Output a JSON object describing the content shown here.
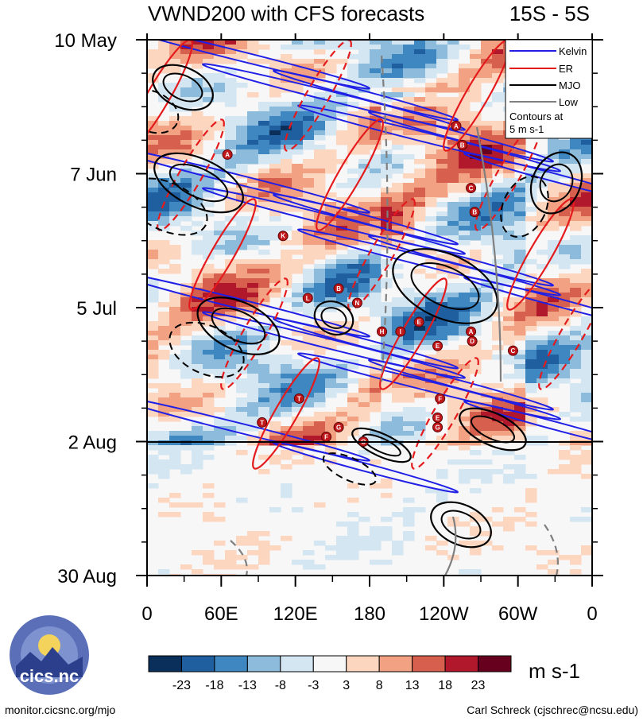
{
  "chart_data": {
    "type": "heatmap",
    "title": "VWND200 with CFS forecasts",
    "region": "15S - 5S",
    "x_tick_labels": [
      "0",
      "60E",
      "120E",
      "180",
      "120W",
      "60W",
      "0"
    ],
    "x_range_deg": [
      0,
      360
    ],
    "y_tick_labels": [
      "10 May",
      "7 Jun",
      "5 Jul",
      "2 Aug",
      "30 Aug"
    ],
    "y_range_days_from_10May": [
      0,
      112
    ],
    "observed_end_label": "2 Aug",
    "colorbar": {
      "ticks": [
        "-23",
        "-18",
        "-13",
        "-8",
        "-3",
        "3",
        "8",
        "13",
        "18",
        "23"
      ],
      "units": "m s-1",
      "colors": [
        "#0a2f5b",
        "#1f5f9f",
        "#3f87c0",
        "#8dbbdc",
        "#d3e6f2",
        "#f7f7f7",
        "#fdd6c0",
        "#f2a282",
        "#d6604d",
        "#b2182b",
        "#67001f"
      ]
    },
    "legend": {
      "entries": [
        {
          "label": "Kelvin",
          "color": "#1f1fe6"
        },
        {
          "label": "ER",
          "color": "#e41a1c"
        },
        {
          "label": "MJO",
          "color": "#000000"
        },
        {
          "label": "Low",
          "color": "#7f7f7f"
        }
      ],
      "note_line1": "Contours at",
      "note_line2": "5 m s-1"
    },
    "storm_markers": [
      {
        "letter": "A",
        "lon": 65,
        "day": 24
      },
      {
        "letter": "K",
        "lon": 110,
        "day": 41
      },
      {
        "letter": "L",
        "lon": 130,
        "day": 54
      },
      {
        "letter": "B",
        "lon": 155,
        "day": 52
      },
      {
        "letter": "N",
        "lon": 170,
        "day": 55
      },
      {
        "letter": "H",
        "lon": 190,
        "day": 61
      },
      {
        "letter": "I",
        "lon": 205,
        "day": 61
      },
      {
        "letter": "E",
        "lon": 220,
        "day": 59
      },
      {
        "letter": "E",
        "lon": 235,
        "day": 64
      },
      {
        "letter": "A",
        "lon": 250,
        "day": 18
      },
      {
        "letter": "B",
        "lon": 255,
        "day": 22
      },
      {
        "letter": "C",
        "lon": 262,
        "day": 31
      },
      {
        "letter": "B",
        "lon": 265,
        "day": 36
      },
      {
        "letter": "A",
        "lon": 262,
        "day": 61
      },
      {
        "letter": "D",
        "lon": 263,
        "day": 63
      },
      {
        "letter": "C",
        "lon": 296,
        "day": 65
      },
      {
        "letter": "F",
        "lon": 237,
        "day": 75
      },
      {
        "letter": "T",
        "lon": 123,
        "day": 75
      },
      {
        "letter": "T",
        "lon": 93,
        "day": 80
      },
      {
        "letter": "E",
        "lon": 235,
        "day": 79
      },
      {
        "letter": "G",
        "lon": 235,
        "day": 81
      },
      {
        "letter": "G",
        "lon": 155,
        "day": 81
      },
      {
        "letter": "F",
        "lon": 145,
        "day": 83
      },
      {
        "letter": "O",
        "lon": 175,
        "day": 84
      }
    ]
  },
  "logo": {
    "text": "cics.nc"
  },
  "footer": {
    "left": "monitor.cicsnc.org/mjo",
    "right": "Carl Schreck (cjschrec@ncsu.edu)"
  }
}
